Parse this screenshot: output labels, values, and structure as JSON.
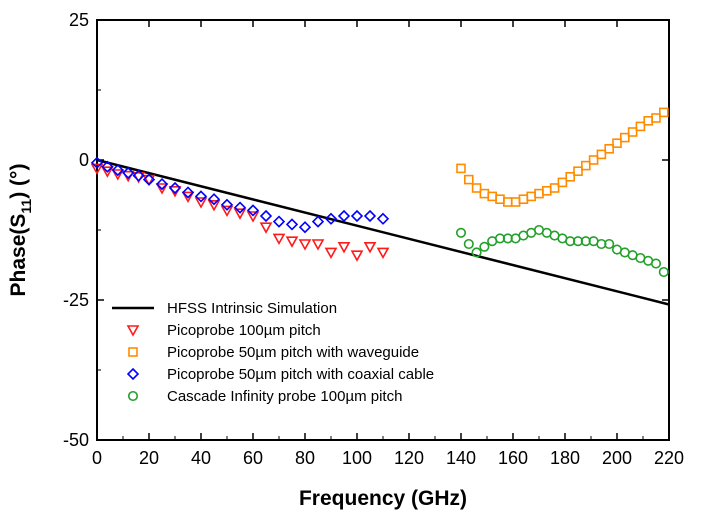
{
  "chart_data": {
    "type": "scatter",
    "title": "",
    "xlabel": "Frequency (GHz)",
    "ylabel": {
      "main": "Phase(S",
      "sub": "11",
      "rest": ") (°)"
    },
    "xlim": [
      0,
      220
    ],
    "ylim": [
      -50,
      25
    ],
    "xticks": [
      0,
      20,
      40,
      60,
      80,
      100,
      120,
      140,
      160,
      180,
      200,
      220
    ],
    "yticks": [
      -50,
      -25,
      0,
      25
    ],
    "xtick_labels": [
      "0",
      "20",
      "40",
      "60",
      "80",
      "100",
      "120",
      "140",
      "160",
      "180",
      "200",
      "220"
    ],
    "ytick_labels": [
      "-50",
      "-25",
      "0",
      "25"
    ],
    "grid": false,
    "legend_position": "lower-left",
    "series": [
      {
        "name": "HFSS Intrinsic Simulation",
        "kind": "line",
        "color": "#000000",
        "x": [
          0,
          220
        ],
        "y": [
          0,
          -25.8
        ]
      },
      {
        "name": "Picoprobe 100µm pitch",
        "kind": "scatter",
        "marker": "triangle-down",
        "color": "#ff1a1a",
        "x": [
          0,
          4,
          8,
          12,
          16,
          20,
          25,
          30,
          35,
          40,
          45,
          50,
          55,
          60,
          65,
          70,
          75,
          80,
          85,
          90,
          95,
          100,
          105,
          110
        ],
        "y": [
          -1.5,
          -2.0,
          -2.5,
          -2.8,
          -3.0,
          -3.5,
          -5.0,
          -5.5,
          -6.5,
          -7.5,
          -8.0,
          -9.0,
          -9.5,
          -10.0,
          -12.0,
          -14.0,
          -14.5,
          -15.0,
          -15.0,
          -16.5,
          -15.5,
          -17.0,
          -15.5,
          -16.5
        ]
      },
      {
        "name": "Picoprobe 50µm pitch with waveguide",
        "kind": "scatter",
        "marker": "square",
        "color": "#ff8c00",
        "x": [
          140,
          143,
          146,
          149,
          152,
          155,
          158,
          161,
          164,
          167,
          170,
          173,
          176,
          179,
          182,
          185,
          188,
          191,
          194,
          197,
          200,
          203,
          206,
          209,
          212,
          215,
          218
        ],
        "y": [
          -1.5,
          -3.5,
          -5.0,
          -6.0,
          -6.5,
          -7.0,
          -7.5,
          -7.5,
          -7.0,
          -6.5,
          -6.0,
          -5.5,
          -5.0,
          -4.0,
          -3.0,
          -2.0,
          -1.0,
          0.0,
          1.0,
          2.0,
          3.0,
          4.0,
          5.0,
          6.0,
          7.0,
          7.5,
          8.5
        ]
      },
      {
        "name": "Picoprobe 50µm pitch with coaxial cable",
        "kind": "scatter",
        "marker": "diamond",
        "color": "#0000ff",
        "x": [
          0,
          4,
          8,
          12,
          16,
          20,
          25,
          30,
          35,
          40,
          45,
          50,
          55,
          60,
          65,
          70,
          75,
          80,
          85,
          90,
          95,
          100,
          105,
          110
        ],
        "y": [
          -0.5,
          -1.2,
          -1.8,
          -2.3,
          -2.8,
          -3.5,
          -4.3,
          -5.0,
          -5.8,
          -6.5,
          -7.0,
          -8.0,
          -8.5,
          -9.0,
          -10.0,
          -11.0,
          -11.5,
          -12.0,
          -11.0,
          -10.5,
          -10.0,
          -10.0,
          -10.0,
          -10.5
        ]
      },
      {
        "name": "Cascade Infinity probe 100µm pitch",
        "kind": "scatter",
        "marker": "circle",
        "color": "#22a02a",
        "x": [
          140,
          143,
          146,
          149,
          152,
          155,
          158,
          161,
          164,
          167,
          170,
          173,
          176,
          179,
          182,
          185,
          188,
          191,
          194,
          197,
          200,
          203,
          206,
          209,
          212,
          215,
          218
        ],
        "y": [
          -13.0,
          -15.0,
          -16.5,
          -15.5,
          -14.5,
          -14.0,
          -14.0,
          -14.0,
          -13.5,
          -13.0,
          -12.5,
          -13.0,
          -13.5,
          -14.0,
          -14.5,
          -14.5,
          -14.5,
          -14.5,
          -15.0,
          -15.0,
          -16.0,
          -16.5,
          -17.0,
          -17.5,
          -18.0,
          -18.5,
          -20.0
        ]
      }
    ]
  }
}
